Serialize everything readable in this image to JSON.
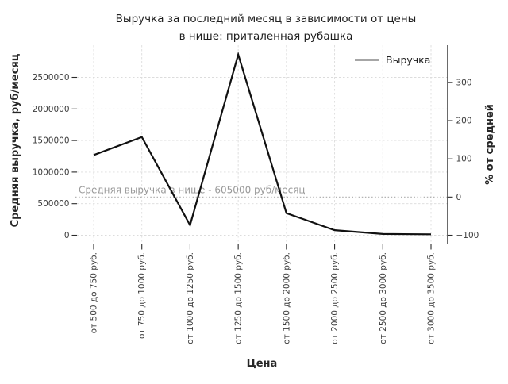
{
  "chart_data": {
    "type": "line",
    "title_lines": [
      "Выручка за последний месяц в зависимости от цены",
      "в нише: приталенная рубашка"
    ],
    "xlabel": "Цена",
    "ylabel_left": "Средняя выручка, руб/месяц",
    "ylabel_right": "% от средней",
    "categories": [
      "от 500 до 750 руб.",
      "от 750 до 1000 руб.",
      "от 1000 до 1250 руб.",
      "от 1250 до 1500 руб.",
      "от 1500 до 2000 руб.",
      "от 2000 до 2500 руб.",
      "от 2500 до 3000 руб.",
      "от 3000 до 3500 руб."
    ],
    "series": [
      {
        "name": "Выручка",
        "values": [
          1270000,
          1555000,
          160000,
          2860000,
          350000,
          80000,
          20000,
          15000
        ]
      }
    ],
    "yticks_left": [
      0,
      500000,
      1000000,
      1500000,
      2000000,
      2500000
    ],
    "yticks_right": {
      "values": [
        -100,
        0,
        100,
        200,
        300
      ],
      "labels": [
        "−100",
        "0",
        "100",
        "200",
        "300"
      ]
    },
    "ylim_left": [
      -145000,
      3010000
    ],
    "average_line": {
      "value": 605000,
      "label": "Средняя выручка в нише - 605000 руб/месяц"
    },
    "legend": {
      "position": "upper right",
      "entries": [
        "Выручка"
      ]
    },
    "grid": true,
    "colors": {
      "line": "#111111",
      "annotation": "#9a9a9a",
      "grid": "#dcdcdc",
      "avg_line": "#b3b3b3"
    }
  }
}
